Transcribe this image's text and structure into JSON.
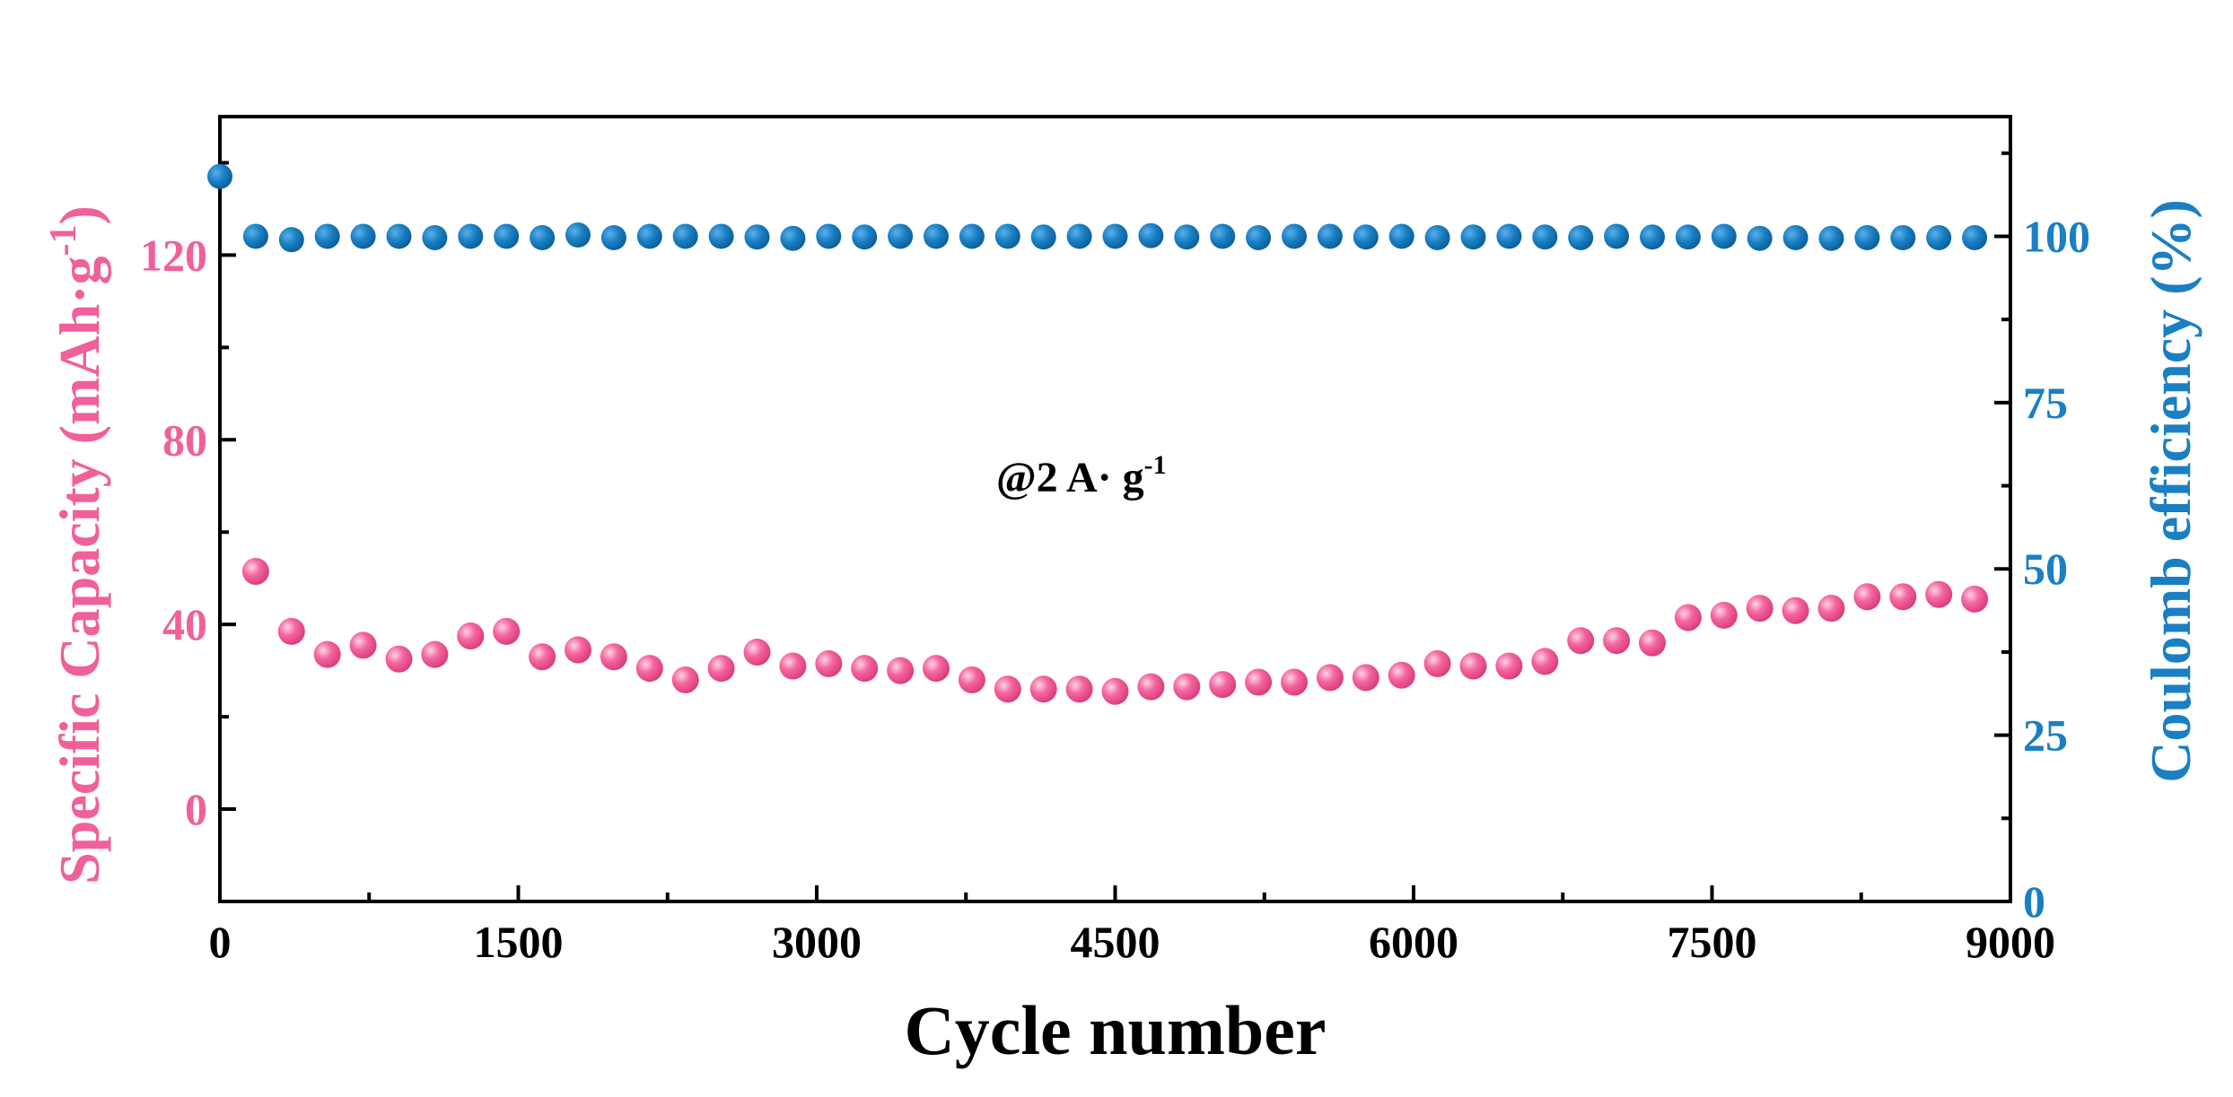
{
  "chart_data": {
    "type": "scatter",
    "title": "",
    "annotation": {
      "base": "@2 A· g",
      "sup": "-1"
    },
    "xlabel": "Cycle number",
    "ylabel": {
      "base": "Specific Capacity (mAh·g",
      "sup": "-1",
      "close": ")"
    },
    "y2label": "Coulomb efficiency (%)",
    "xlim": [
      0,
      9000
    ],
    "ylim": [
      -20,
      150
    ],
    "y2lim": [
      0,
      118
    ],
    "x_ticks": [
      0,
      1500,
      3000,
      4500,
      6000,
      7500,
      9000
    ],
    "y_ticks": [
      0,
      40,
      80,
      120
    ],
    "y2_ticks": [
      0,
      25,
      50,
      75,
      100
    ],
    "colors": {
      "capacity": "#f0609a",
      "efficiency": "#1a7fc3",
      "axis": "#000000"
    },
    "series": [
      {
        "name": "Specific Capacity",
        "axis": "left",
        "x": [
          180,
          360,
          540,
          720,
          900,
          1080,
          1260,
          1440,
          1620,
          1800,
          1980,
          2160,
          2340,
          2520,
          2700,
          2880,
          3060,
          3240,
          3420,
          3600,
          3780,
          3960,
          4140,
          4320,
          4500,
          4680,
          4860,
          5040,
          5220,
          5400,
          5580,
          5760,
          5940,
          6120,
          6300,
          6480,
          6660,
          6840,
          7020,
          7200,
          7380,
          7560,
          7740,
          7920,
          8100,
          8280,
          8460,
          8640,
          8820
        ],
        "y": [
          51.5,
          38.5,
          33.5,
          35.5,
          32.5,
          33.5,
          37.5,
          38.5,
          33,
          34.5,
          33,
          30.5,
          28,
          30.5,
          34,
          31,
          31.5,
          30.5,
          30,
          30.5,
          28,
          26,
          26,
          26,
          25.5,
          26.5,
          26.5,
          27,
          27.5,
          27.5,
          28.5,
          28.5,
          29,
          31.5,
          31,
          31,
          32,
          36.5,
          36.5,
          36,
          41.5,
          42,
          43.5,
          43,
          43.5,
          46,
          46,
          46.5,
          45.5
        ]
      },
      {
        "name": "Coulomb efficiency",
        "axis": "right",
        "x": [
          0,
          180,
          360,
          540,
          720,
          900,
          1080,
          1260,
          1440,
          1620,
          1800,
          1980,
          2160,
          2340,
          2520,
          2700,
          2880,
          3060,
          3240,
          3420,
          3600,
          3780,
          3960,
          4140,
          4320,
          4500,
          4680,
          4860,
          5040,
          5220,
          5400,
          5580,
          5760,
          5940,
          6120,
          6300,
          6480,
          6660,
          6840,
          7020,
          7200,
          7380,
          7560,
          7740,
          7920,
          8100,
          8280,
          8460,
          8640,
          8820
        ],
        "y": [
          109,
          100,
          99.5,
          100,
          100,
          100,
          99.8,
          100,
          100,
          99.8,
          100.2,
          99.8,
          100,
          100,
          100,
          99.9,
          99.7,
          100,
          99.9,
          100,
          100,
          100,
          100,
          99.9,
          100,
          100,
          100.1,
          99.9,
          100,
          99.8,
          100,
          100,
          99.9,
          100,
          99.8,
          99.9,
          100,
          99.9,
          99.8,
          100,
          99.9,
          99.9,
          100,
          99.7,
          99.8,
          99.7,
          99.8,
          99.8,
          99.8,
          99.8
        ]
      }
    ]
  }
}
